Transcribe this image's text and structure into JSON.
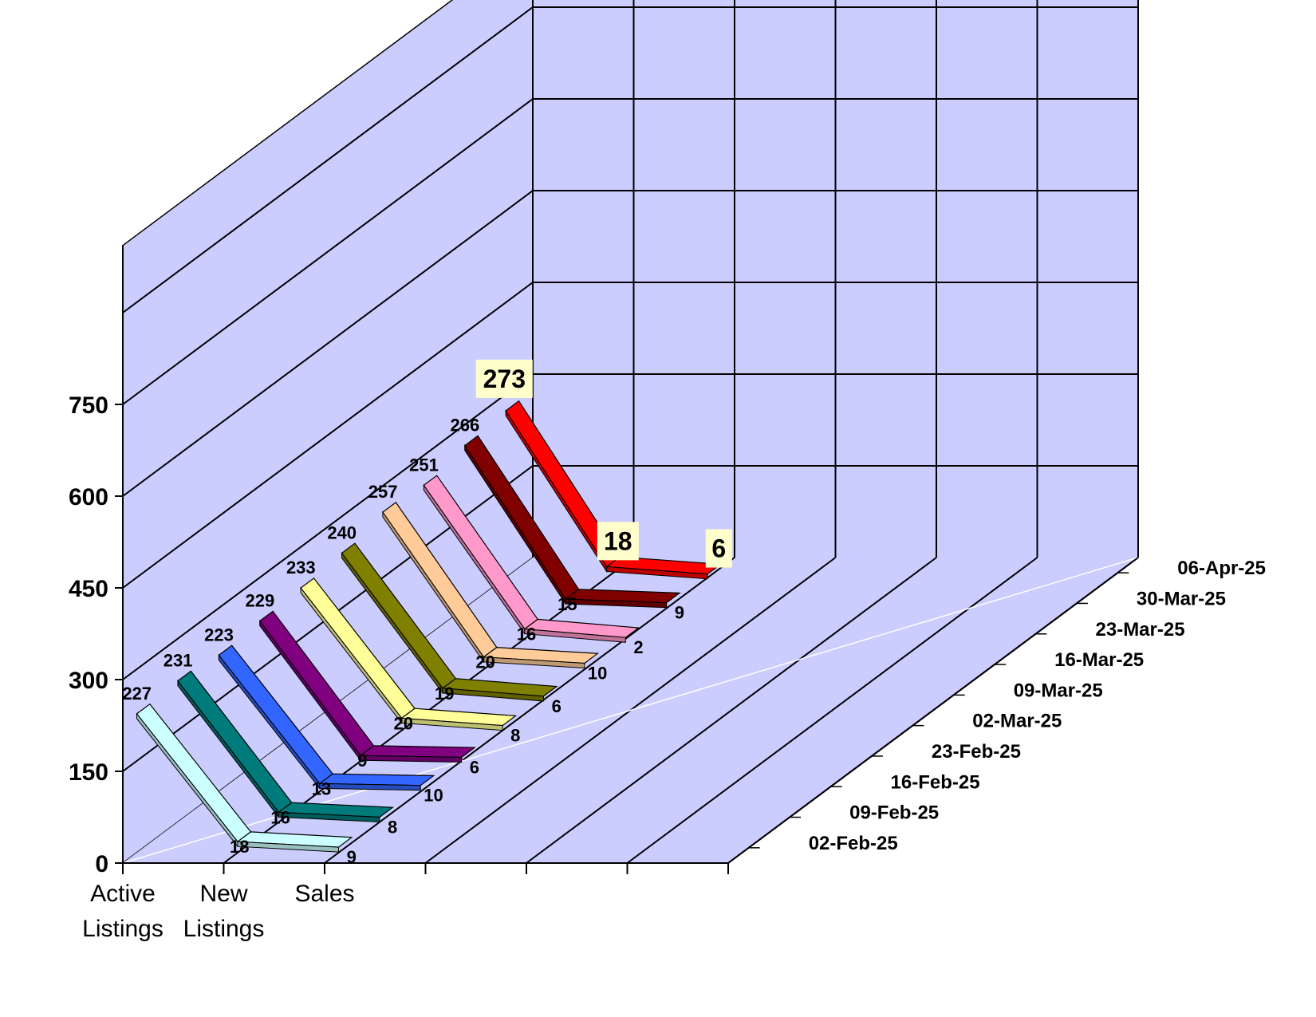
{
  "chart_data": {
    "type": "line",
    "title": "",
    "xlabel": "",
    "ylabel": "",
    "categories": [
      [
        "Active",
        "Listings"
      ],
      [
        "New",
        "Listings"
      ],
      [
        "Sales",
        ""
      ]
    ],
    "yticks": [
      0,
      150,
      300,
      450,
      600,
      750
    ],
    "ylim": [
      0,
      750
    ],
    "grid": true,
    "series": [
      {
        "name": "02-Feb-25",
        "color": "#ccffff",
        "values": [
          227,
          18,
          9
        ]
      },
      {
        "name": "09-Feb-25",
        "color": "#007b7b",
        "values": [
          231,
          16,
          8
        ]
      },
      {
        "name": "16-Feb-25",
        "color": "#3366ff",
        "values": [
          223,
          13,
          10
        ]
      },
      {
        "name": "23-Feb-25",
        "color": "#800080",
        "values": [
          229,
          9,
          6
        ]
      },
      {
        "name": "02-Mar-25",
        "color": "#ffff99",
        "values": [
          233,
          20,
          8
        ]
      },
      {
        "name": "09-Mar-25",
        "color": "#808000",
        "values": [
          240,
          19,
          6
        ]
      },
      {
        "name": "16-Mar-25",
        "color": "#ffcc99",
        "values": [
          257,
          20,
          10
        ]
      },
      {
        "name": "23-Mar-25",
        "color": "#ff99cc",
        "values": [
          251,
          16,
          2
        ]
      },
      {
        "name": "30-Mar-25",
        "color": "#800000",
        "values": [
          266,
          15,
          9
        ]
      },
      {
        "name": "06-Apr-25",
        "color": "#ff0000",
        "values": [
          273,
          18,
          6
        ]
      }
    ]
  },
  "colors": {
    "wall": "#cccdff",
    "grid": "#000000",
    "floor_diagonal": "#ffffff",
    "highlight_label_bg": "#ffffcc"
  }
}
